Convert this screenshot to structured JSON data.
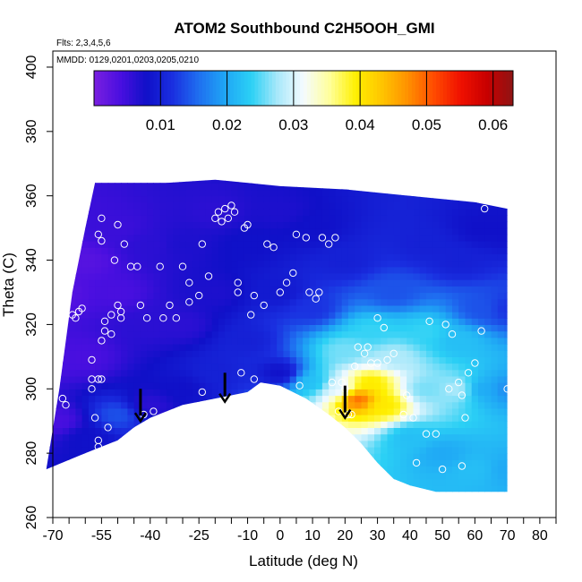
{
  "chart_data": {
    "type": "heatmap",
    "title": "ATOM2 Southbound C2H5OOH_GMI",
    "flights_note": "Flts: 2,3,4,5,6",
    "dates_note": "MMDD: 0129,0201,0203,0205,0210",
    "xlabel": "Latitude (deg N)",
    "ylabel": "Theta (C)",
    "xlim": [
      -70,
      85
    ],
    "ylim": [
      260,
      405
    ],
    "x_ticks": [
      -70,
      -55,
      -40,
      -25,
      -10,
      0,
      10,
      20,
      30,
      40,
      50,
      60,
      70,
      80
    ],
    "x_minor_ticks": [
      -65,
      -60,
      -50,
      -45,
      -35,
      -30,
      -20,
      -15,
      -5,
      5,
      15,
      25,
      35,
      45,
      55,
      65,
      75,
      85
    ],
    "y_ticks": [
      260,
      280,
      300,
      320,
      340,
      360,
      380,
      400
    ],
    "colorbar": {
      "range": [
        0,
        0.063
      ],
      "tick_values": [
        0.01,
        0.02,
        0.03,
        0.04,
        0.05,
        0.06
      ],
      "tick_labels": [
        "0.01",
        "0.02",
        "0.03",
        "0.04",
        "0.05",
        "0.06"
      ],
      "colors": [
        "#7a1fe0",
        "#4a0fe0",
        "#1010c8",
        "#1a2fe0",
        "#1f6ff0",
        "#1fa6f5",
        "#2bd0f5",
        "#a8e8fa",
        "#f5fbff",
        "#ffff9a",
        "#fff000",
        "#ffc400",
        "#ff8f00",
        "#ff4a00",
        "#f01000",
        "#c80000",
        "#8e1414"
      ]
    },
    "domain_top": [
      [
        -72,
        275
      ],
      [
        -68,
        300
      ],
      [
        -64,
        330
      ],
      [
        -60,
        350
      ],
      [
        -57,
        364
      ],
      [
        -35,
        364
      ],
      [
        -20,
        365
      ],
      [
        0,
        363
      ],
      [
        20,
        362
      ],
      [
        40,
        360
      ],
      [
        60,
        358
      ],
      [
        70,
        356
      ]
    ],
    "domain_bottom": [
      [
        -72,
        275
      ],
      [
        -60,
        280
      ],
      [
        -50,
        284
      ],
      [
        -45,
        288
      ],
      [
        -40,
        291
      ],
      [
        -30,
        295
      ],
      [
        -20,
        297
      ],
      [
        -10,
        299
      ],
      [
        -6,
        302
      ],
      [
        0,
        301
      ],
      [
        8,
        297
      ],
      [
        15,
        292
      ],
      [
        20,
        288
      ],
      [
        25,
        283
      ],
      [
        30,
        277
      ],
      [
        35,
        272
      ],
      [
        40,
        270
      ],
      [
        48,
        268
      ],
      [
        55,
        268
      ],
      [
        62,
        268
      ],
      [
        70,
        268
      ]
    ],
    "field_points": [
      {
        "x": -68,
        "y": 290,
        "v": 0.004
      },
      {
        "x": -68,
        "y": 310,
        "v": 0.004
      },
      {
        "x": -68,
        "y": 330,
        "v": 0.003
      },
      {
        "x": -60,
        "y": 285,
        "v": 0.008
      },
      {
        "x": -60,
        "y": 310,
        "v": 0.004
      },
      {
        "x": -60,
        "y": 340,
        "v": 0.003
      },
      {
        "x": -60,
        "y": 355,
        "v": 0.005
      },
      {
        "x": -50,
        "y": 292,
        "v": 0.014
      },
      {
        "x": -50,
        "y": 330,
        "v": 0.004
      },
      {
        "x": -50,
        "y": 350,
        "v": 0.005
      },
      {
        "x": -40,
        "y": 295,
        "v": 0.006
      },
      {
        "x": -40,
        "y": 320,
        "v": 0.006
      },
      {
        "x": -40,
        "y": 345,
        "v": 0.006
      },
      {
        "x": -30,
        "y": 300,
        "v": 0.008
      },
      {
        "x": -30,
        "y": 320,
        "v": 0.006
      },
      {
        "x": -30,
        "y": 345,
        "v": 0.007
      },
      {
        "x": -20,
        "y": 305,
        "v": 0.01
      },
      {
        "x": -20,
        "y": 330,
        "v": 0.007
      },
      {
        "x": -20,
        "y": 355,
        "v": 0.006
      },
      {
        "x": -10,
        "y": 315,
        "v": 0.01
      },
      {
        "x": -10,
        "y": 345,
        "v": 0.008
      },
      {
        "x": 0,
        "y": 305,
        "v": 0.008
      },
      {
        "x": 0,
        "y": 330,
        "v": 0.009
      },
      {
        "x": 0,
        "y": 355,
        "v": 0.007
      },
      {
        "x": 10,
        "y": 302,
        "v": 0.022
      },
      {
        "x": 10,
        "y": 325,
        "v": 0.012
      },
      {
        "x": 10,
        "y": 350,
        "v": 0.008
      },
      {
        "x": 18,
        "y": 300,
        "v": 0.03
      },
      {
        "x": 20,
        "y": 312,
        "v": 0.026
      },
      {
        "x": 20,
        "y": 340,
        "v": 0.01
      },
      {
        "x": 24,
        "y": 297,
        "v": 0.05
      },
      {
        "x": 28,
        "y": 302,
        "v": 0.04
      },
      {
        "x": 28,
        "y": 318,
        "v": 0.024
      },
      {
        "x": 32,
        "y": 295,
        "v": 0.04
      },
      {
        "x": 35,
        "y": 310,
        "v": 0.028
      },
      {
        "x": 35,
        "y": 330,
        "v": 0.014
      },
      {
        "x": 40,
        "y": 285,
        "v": 0.022
      },
      {
        "x": 45,
        "y": 300,
        "v": 0.026
      },
      {
        "x": 45,
        "y": 318,
        "v": 0.024
      },
      {
        "x": 45,
        "y": 345,
        "v": 0.01
      },
      {
        "x": 50,
        "y": 280,
        "v": 0.02
      },
      {
        "x": 55,
        "y": 300,
        "v": 0.028
      },
      {
        "x": 55,
        "y": 315,
        "v": 0.022
      },
      {
        "x": 55,
        "y": 340,
        "v": 0.01
      },
      {
        "x": 60,
        "y": 275,
        "v": 0.022
      },
      {
        "x": 62,
        "y": 300,
        "v": 0.02
      },
      {
        "x": 62,
        "y": 325,
        "v": 0.014
      },
      {
        "x": 62,
        "y": 350,
        "v": 0.008
      },
      {
        "x": 70,
        "y": 275,
        "v": 0.02
      },
      {
        "x": 70,
        "y": 300,
        "v": 0.018
      },
      {
        "x": 70,
        "y": 325,
        "v": 0.012
      },
      {
        "x": 70,
        "y": 350,
        "v": 0.008
      }
    ],
    "sample_points": [
      [
        -67,
        333
      ],
      [
        -67,
        297
      ],
      [
        -66,
        295
      ],
      [
        -66,
        337
      ],
      [
        -64,
        323
      ],
      [
        -63,
        322
      ],
      [
        -62,
        324
      ],
      [
        -61,
        325
      ],
      [
        -58,
        300
      ],
      [
        -58,
        303
      ],
      [
        -58,
        309
      ],
      [
        -57,
        291
      ],
      [
        -56,
        303
      ],
      [
        -56,
        282
      ],
      [
        -56,
        284
      ],
      [
        -56,
        348
      ],
      [
        -55,
        353
      ],
      [
        -55,
        346
      ],
      [
        -55,
        303
      ],
      [
        -55,
        315
      ],
      [
        -54,
        318
      ],
      [
        -54,
        321
      ],
      [
        -53,
        288
      ],
      [
        -52,
        317
      ],
      [
        -52,
        323
      ],
      [
        -51,
        340
      ],
      [
        -50,
        326
      ],
      [
        -50,
        351
      ],
      [
        -49,
        324
      ],
      [
        -49,
        322
      ],
      [
        -48,
        345
      ],
      [
        -46,
        338
      ],
      [
        -44,
        338
      ],
      [
        -43,
        326
      ],
      [
        -42,
        292
      ],
      [
        -41,
        322
      ],
      [
        -39,
        293
      ],
      [
        -37,
        338
      ],
      [
        -36,
        322
      ],
      [
        -34,
        326
      ],
      [
        -32,
        322
      ],
      [
        -30,
        338
      ],
      [
        -28,
        327
      ],
      [
        -28,
        333
      ],
      [
        -25,
        329
      ],
      [
        -24,
        345
      ],
      [
        -24,
        299
      ],
      [
        -22,
        335
      ],
      [
        -20,
        353
      ],
      [
        -19,
        355
      ],
      [
        -18,
        352
      ],
      [
        -17,
        356
      ],
      [
        -16,
        353
      ],
      [
        -15,
        357
      ],
      [
        -14,
        355
      ],
      [
        -13,
        330
      ],
      [
        -13,
        333
      ],
      [
        -12,
        305
      ],
      [
        -11,
        350
      ],
      [
        -10,
        351
      ],
      [
        -9,
        323
      ],
      [
        -8,
        329
      ],
      [
        -8,
        303
      ],
      [
        -5,
        326
      ],
      [
        -4,
        345
      ],
      [
        -2,
        344
      ],
      [
        0,
        330
      ],
      [
        2,
        333
      ],
      [
        4,
        336
      ],
      [
        5,
        348
      ],
      [
        6,
        301
      ],
      [
        8,
        347
      ],
      [
        9,
        330
      ],
      [
        11,
        328
      ],
      [
        12,
        330
      ],
      [
        13,
        347
      ],
      [
        15,
        345
      ],
      [
        16,
        302
      ],
      [
        17,
        347
      ],
      [
        18,
        293
      ],
      [
        19,
        302
      ],
      [
        20,
        300
      ],
      [
        21,
        292
      ],
      [
        22,
        292
      ],
      [
        23,
        307
      ],
      [
        24,
        313
      ],
      [
        26,
        311
      ],
      [
        27,
        313
      ],
      [
        28,
        308
      ],
      [
        30,
        308
      ],
      [
        30,
        322
      ],
      [
        32,
        319
      ],
      [
        33,
        309
      ],
      [
        35,
        311
      ],
      [
        38,
        292
      ],
      [
        39,
        298
      ],
      [
        41,
        291
      ],
      [
        42,
        277
      ],
      [
        45,
        286
      ],
      [
        46,
        321
      ],
      [
        48,
        286
      ],
      [
        50,
        275
      ],
      [
        51,
        320
      ],
      [
        52,
        300
      ],
      [
        53,
        317
      ],
      [
        55,
        302
      ],
      [
        56,
        298
      ],
      [
        56,
        276
      ],
      [
        57,
        291
      ],
      [
        58,
        305
      ],
      [
        60,
        308
      ],
      [
        62,
        318
      ],
      [
        63,
        356
      ],
      [
        70,
        300
      ]
    ],
    "arrows": [
      {
        "x": -43,
        "y_from": 300,
        "y_to": 290
      },
      {
        "x": -17,
        "y_from": 305,
        "y_to": 296
      },
      {
        "x": 20,
        "y_from": 301,
        "y_to": 291
      }
    ]
  }
}
